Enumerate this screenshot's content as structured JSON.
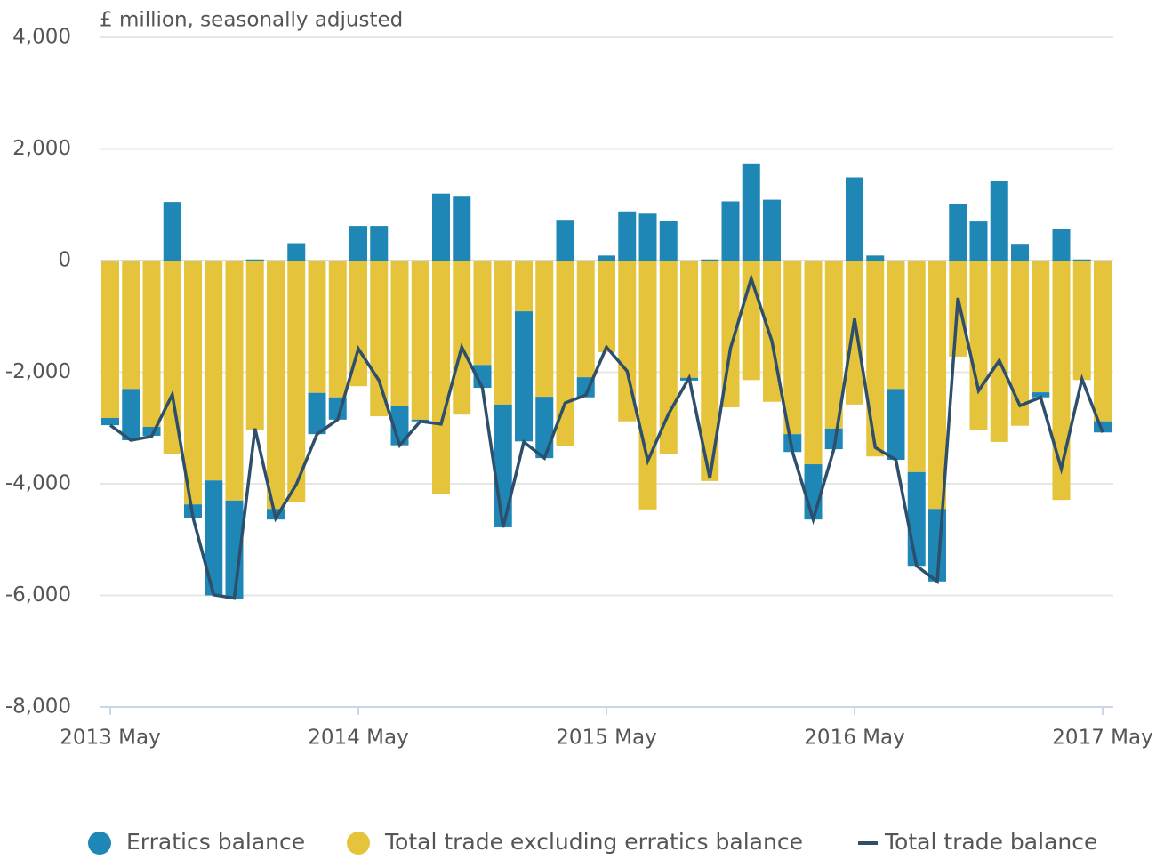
{
  "chart_data": {
    "type": "bar",
    "stacked": true,
    "y_label": "£ million, seasonally adjusted",
    "categories": [
      "2013 May",
      null,
      null,
      null,
      null,
      null,
      null,
      null,
      null,
      null,
      null,
      null,
      "2014 May",
      null,
      null,
      null,
      null,
      null,
      null,
      null,
      null,
      null,
      null,
      null,
      "2015 May",
      null,
      null,
      null,
      null,
      null,
      null,
      null,
      null,
      null,
      null,
      null,
      "2016 May",
      null,
      null,
      null,
      null,
      null,
      null,
      null,
      null,
      null,
      null,
      null,
      "2017 May"
    ],
    "series": [
      {
        "name": "Erratics balance",
        "type": "bar",
        "color": "#1f87b5",
        "values": [
          -130,
          -920,
          -160,
          1050,
          -240,
          -2060,
          -1770,
          20,
          -190,
          310,
          -740,
          -400,
          620,
          620,
          -700,
          -30,
          1200,
          1160,
          -410,
          -2200,
          -2330,
          -1100,
          730,
          -360,
          90,
          880,
          840,
          710,
          -50,
          20,
          1060,
          1740,
          1090,
          -320,
          -990,
          -370,
          1490,
          90,
          -1270,
          -1680,
          -1300,
          1020,
          700,
          1420,
          300,
          -90,
          560,
          20,
          -200
        ]
      },
      {
        "name": "Total trade excluding erratics balance",
        "type": "bar",
        "color": "#e5c43c",
        "values": [
          -2820,
          -2300,
          -2980,
          -3460,
          -4370,
          -3940,
          -4300,
          -3030,
          -4450,
          -4320,
          -2370,
          -2450,
          -2250,
          -2790,
          -2610,
          -2850,
          -4180,
          -2760,
          -1870,
          -2580,
          -910,
          -2440,
          -3320,
          -2090,
          -1640,
          -2880,
          -4460,
          -3460,
          -2100,
          -3950,
          -2630,
          -2140,
          -2530,
          -3110,
          -3650,
          -3010,
          -2580,
          -3510,
          -2300,
          -3790,
          -4450,
          -1720,
          -3030,
          -3250,
          -2960,
          -2360,
          -4290,
          -2140,
          -2880
        ]
      },
      {
        "name": "Total trade balance",
        "type": "line",
        "color": "#2d4f6b",
        "values": [
          -2950,
          -3220,
          -3150,
          -2400,
          -4600,
          -5990,
          -6050,
          -3010,
          -4620,
          -4010,
          -3110,
          -2850,
          -1580,
          -2150,
          -3310,
          -2880,
          -2930,
          -1550,
          -2280,
          -4780,
          -3250,
          -3540,
          -2550,
          -2410,
          -1550,
          -1980,
          -3590,
          -2750,
          -2100,
          -3900,
          -1570,
          -320,
          -1440,
          -3430,
          -4640,
          -3380,
          -1040,
          -3350,
          -3570,
          -5470,
          -5750,
          -670,
          -2330,
          -1790,
          -2600,
          -2450,
          -3730,
          -2120,
          -3080
        ]
      }
    ],
    "ylim": [
      -8000,
      4000
    ],
    "yticks": [
      {
        "value": -8000,
        "label": "-8,000"
      },
      {
        "value": -6000,
        "label": "-6,000"
      },
      {
        "value": -4000,
        "label": "-4,000"
      },
      {
        "value": -2000,
        "label": "-2,000"
      },
      0,
      {
        "value": 2000,
        "label": "2,000"
      },
      {
        "value": 4000,
        "label": "4,000"
      }
    ],
    "grid": true,
    "legend": "bottom"
  }
}
